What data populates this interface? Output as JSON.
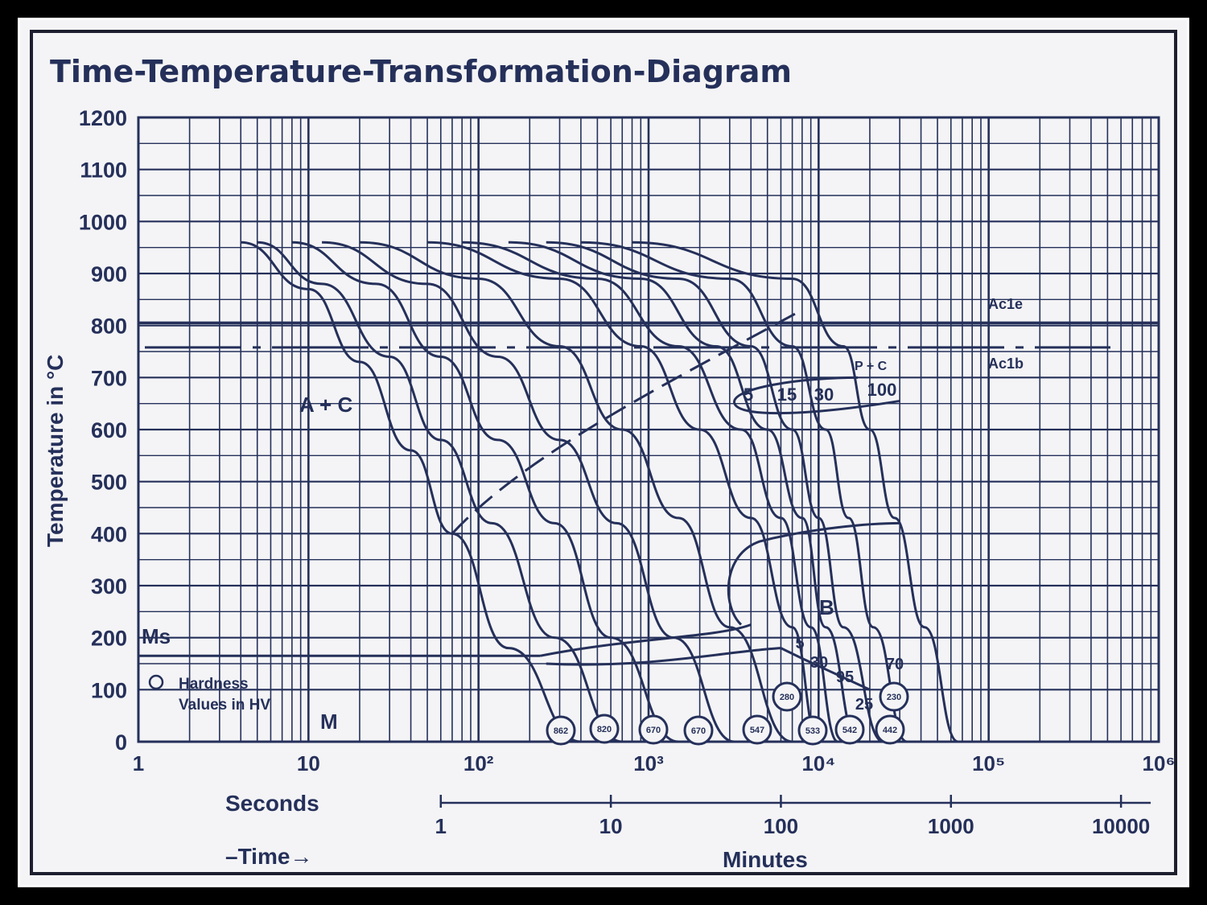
{
  "chart_data": {
    "type": "line",
    "title": "Time-Temperature-Transformation-Diagram",
    "ylabel": "Temperature in °C",
    "ylim": [
      0,
      1200
    ],
    "yticks": [
      "0",
      "100",
      "200",
      "300",
      "400",
      "500",
      "600",
      "700",
      "800",
      "900",
      "1000",
      "1100",
      "1200"
    ],
    "xscale": "log",
    "xlim_seconds": [
      1,
      1000000
    ],
    "xticks_seconds": [
      "1",
      "10",
      "10²",
      "10³",
      "10⁴",
      "10⁵",
      "10⁶"
    ],
    "xlabel_seconds": "Seconds",
    "xticks_minutes": [
      "1",
      "10",
      "100",
      "1000",
      "10000"
    ],
    "xlabel_minutes": "Minutes",
    "time_label": "–Time→",
    "grid": true,
    "lines": {
      "ac1e": {
        "label": "Ac1e",
        "temperature": 805
      },
      "ac1b": {
        "label": "Ac1b",
        "temperature": 758
      },
      "ms": {
        "label": "Ms",
        "temperature": 195
      }
    },
    "region_labels": {
      "austenite_carbide": "A + C",
      "pearlite": "P + C",
      "bainite": "B",
      "martensite": "M"
    },
    "legend_hardness": {
      "line1": "Hardness",
      "line2": "Values in HV"
    },
    "percent_labels": {
      "pearlite": [
        "5",
        "15",
        "30",
        "100"
      ],
      "bainite": [
        "5",
        "30",
        "95",
        "70",
        "25"
      ]
    },
    "hardness_values": [
      "862",
      "820",
      "670",
      "670",
      "547",
      "533",
      "542",
      "442",
      "280",
      "230"
    ],
    "cooling_curves": [
      {
        "x": [
          4,
          10,
          20,
          40,
          70,
          150,
          400
        ],
        "y": [
          960,
          870,
          730,
          560,
          400,
          180,
          0
        ]
      },
      {
        "x": [
          5,
          12,
          30,
          60,
          120,
          280,
          700
        ],
        "y": [
          960,
          880,
          740,
          580,
          420,
          200,
          0
        ]
      },
      {
        "x": [
          8,
          25,
          60,
          130,
          280,
          600,
          1500
        ],
        "y": [
          960,
          880,
          740,
          580,
          420,
          200,
          0
        ]
      },
      {
        "x": [
          12,
          50,
          130,
          300,
          650,
          1400,
          3200
        ],
        "y": [
          960,
          880,
          740,
          580,
          420,
          200,
          0
        ]
      },
      {
        "x": [
          20,
          100,
          300,
          700,
          1500,
          3000,
          7000
        ],
        "y": [
          960,
          890,
          760,
          600,
          430,
          220,
          0
        ]
      },
      {
        "x": [
          50,
          300,
          900,
          2000,
          4000,
          7000,
          10000
        ],
        "y": [
          960,
          890,
          760,
          600,
          430,
          220,
          0
        ]
      },
      {
        "x": [
          80,
          500,
          1500,
          3500,
          6000,
          9000,
          13000
        ],
        "y": [
          960,
          890,
          760,
          600,
          430,
          220,
          0
        ]
      },
      {
        "x": [
          150,
          900,
          2500,
          5000,
          8000,
          11000,
          17000
        ],
        "y": [
          960,
          890,
          760,
          600,
          430,
          220,
          0
        ]
      },
      {
        "x": [
          250,
          1500,
          4000,
          7000,
          10000,
          14000,
          24000
        ],
        "y": [
          960,
          890,
          760,
          600,
          430,
          220,
          0
        ]
      },
      {
        "x": [
          400,
          3000,
          7000,
          11000,
          15000,
          21000,
          33000
        ],
        "y": [
          960,
          890,
          760,
          600,
          430,
          220,
          0
        ]
      },
      {
        "x": [
          800,
          7000,
          14000,
          20000,
          28000,
          42000,
          66000
        ],
        "y": [
          960,
          890,
          760,
          600,
          430,
          220,
          0
        ]
      }
    ]
  }
}
